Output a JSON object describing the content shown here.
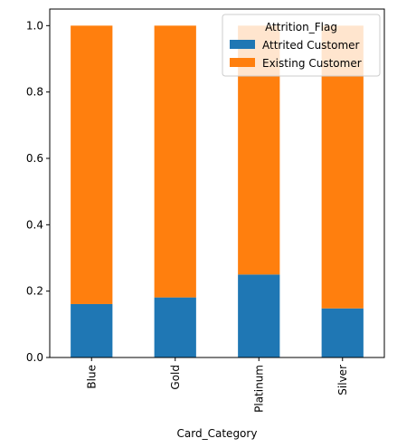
{
  "chart_data": {
    "type": "bar",
    "stacked": true,
    "categories": [
      "Blue",
      "Gold",
      "Platinum",
      "Silver"
    ],
    "series": [
      {
        "name": "Attrited Customer",
        "values": [
          0.161,
          0.181,
          0.25,
          0.148
        ],
        "color": "#1f77b4"
      },
      {
        "name": "Existing Customer",
        "values": [
          0.839,
          0.819,
          0.75,
          0.852
        ],
        "color": "#ff7f0e"
      }
    ],
    "xlabel": "Card_Category",
    "ylabel": "",
    "ylim": [
      0,
      1.05
    ],
    "yticks": [
      0.0,
      0.2,
      0.4,
      0.6,
      0.8,
      1.0
    ],
    "ytick_labels": [
      "0.0",
      "0.2",
      "0.4",
      "0.6",
      "0.8",
      "1.0"
    ],
    "grid": false,
    "legend": {
      "title": "Attrition_Flag",
      "placement": "top-right"
    }
  }
}
